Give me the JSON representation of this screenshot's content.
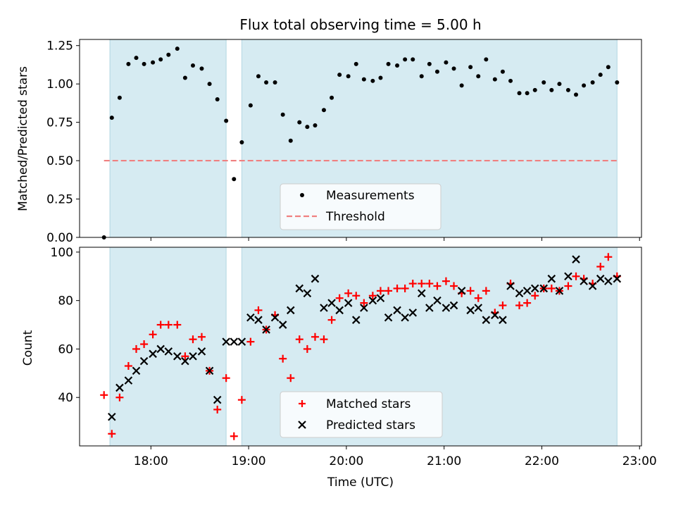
{
  "chart_data": {
    "title": "Flux total observing time = 5.00 h",
    "xlabel": "Time (UTC)",
    "x_ticks": [
      {
        "t": 18.0,
        "label": "18:00"
      },
      {
        "t": 19.0,
        "label": "19:00"
      },
      {
        "t": 20.0,
        "label": "20:00"
      },
      {
        "t": 21.0,
        "label": "21:00"
      },
      {
        "t": 22.0,
        "label": "22:00"
      },
      {
        "t": 23.0,
        "label": "23:00"
      }
    ],
    "xlim": [
      17.27,
      23.02
    ],
    "shaded_intervals": [
      [
        17.58,
        18.77
      ],
      [
        18.93,
        22.77
      ]
    ],
    "top": {
      "type": "scatter",
      "ylabel": "Matched/Predicted stars",
      "ylim": [
        0,
        1.29
      ],
      "yticks": [
        0.0,
        0.25,
        0.5,
        0.75,
        1.0,
        1.25
      ],
      "ytick_labels": [
        "0.00",
        "0.25",
        "0.50",
        "0.75",
        "1.00",
        "1.25"
      ],
      "threshold": {
        "value": 0.5,
        "x_range": [
          17.52,
          22.77
        ],
        "name": "Threshold",
        "color": "#f08080"
      },
      "series": {
        "name": "Measurements",
        "color": "#000000",
        "x": [
          17.52,
          17.6,
          17.68,
          17.77,
          17.85,
          17.93,
          18.02,
          18.1,
          18.18,
          18.27,
          18.35,
          18.43,
          18.52,
          18.6,
          18.68,
          18.77,
          18.85,
          18.93,
          19.02,
          19.1,
          19.18,
          19.27,
          19.35,
          19.43,
          19.52,
          19.6,
          19.68,
          19.77,
          19.85,
          19.93,
          20.02,
          20.1,
          20.18,
          20.27,
          20.35,
          20.43,
          20.52,
          20.6,
          20.68,
          20.77,
          20.85,
          20.93,
          21.02,
          21.1,
          21.18,
          21.27,
          21.35,
          21.43,
          21.52,
          21.6,
          21.68,
          21.77,
          21.85,
          21.93,
          22.02,
          22.1,
          22.18,
          22.27,
          22.35,
          22.43,
          22.52,
          22.6,
          22.68,
          22.77
        ],
        "y": [
          0.0,
          0.78,
          0.91,
          1.13,
          1.17,
          1.13,
          1.14,
          1.16,
          1.19,
          1.23,
          1.04,
          1.12,
          1.1,
          1.0,
          0.9,
          0.76,
          0.38,
          0.62,
          0.86,
          1.05,
          1.01,
          1.01,
          0.8,
          0.63,
          0.75,
          0.72,
          0.73,
          0.83,
          0.91,
          1.06,
          1.05,
          1.13,
          1.03,
          1.02,
          1.04,
          1.13,
          1.12,
          1.16,
          1.16,
          1.05,
          1.13,
          1.08,
          1.14,
          1.1,
          0.99,
          1.11,
          1.05,
          1.16,
          1.03,
          1.08,
          1.02,
          0.94,
          0.94,
          0.96,
          1.01,
          0.96,
          1.0,
          0.96,
          0.93,
          0.99,
          1.01,
          1.06,
          1.11,
          1.01
        ]
      },
      "legend": {
        "placement": "lower-center"
      }
    },
    "bottom": {
      "type": "scatter",
      "ylabel": "Count",
      "ylim": [
        20,
        102
      ],
      "yticks": [
        40,
        60,
        80,
        100
      ],
      "ytick_labels": [
        "40",
        "60",
        "80",
        "100"
      ],
      "series": [
        {
          "name": "Matched stars",
          "marker": "plus",
          "color": "#ff0000",
          "x": [
            17.52,
            17.6,
            17.68,
            17.77,
            17.85,
            17.93,
            18.02,
            18.1,
            18.18,
            18.27,
            18.35,
            18.43,
            18.52,
            18.6,
            18.68,
            18.77,
            18.85,
            18.93,
            19.02,
            19.1,
            19.18,
            19.27,
            19.35,
            19.43,
            19.52,
            19.6,
            19.68,
            19.77,
            19.85,
            19.93,
            20.02,
            20.1,
            20.18,
            20.27,
            20.35,
            20.43,
            20.52,
            20.6,
            20.68,
            20.77,
            20.85,
            20.93,
            21.02,
            21.1,
            21.18,
            21.27,
            21.35,
            21.43,
            21.52,
            21.6,
            21.68,
            21.77,
            21.85,
            21.93,
            22.02,
            22.1,
            22.18,
            22.27,
            22.35,
            22.43,
            22.52,
            22.6,
            22.68,
            22.77
          ],
          "y": [
            41,
            25,
            40,
            53,
            60,
            62,
            66,
            70,
            70,
            70,
            57,
            64,
            65,
            51,
            35,
            48,
            24,
            39,
            63,
            76,
            68,
            74,
            56,
            48,
            64,
            60,
            65,
            64,
            72,
            81,
            83,
            82,
            79,
            82,
            84,
            84,
            85,
            85,
            87,
            87,
            87,
            86,
            88,
            86,
            83,
            84,
            81,
            84,
            75,
            78,
            87,
            78,
            79,
            82,
            85,
            85,
            84,
            86,
            90,
            89,
            87,
            94,
            98,
            90
          ]
        },
        {
          "name": "Predicted stars",
          "marker": "x",
          "color": "#000000",
          "x": [
            17.6,
            17.68,
            17.77,
            17.85,
            17.93,
            18.02,
            18.1,
            18.18,
            18.27,
            18.35,
            18.43,
            18.52,
            18.6,
            18.68,
            18.77,
            18.85,
            18.93,
            19.02,
            19.1,
            19.18,
            19.27,
            19.35,
            19.43,
            19.52,
            19.6,
            19.68,
            19.77,
            19.85,
            19.93,
            20.02,
            20.1,
            20.18,
            20.27,
            20.35,
            20.43,
            20.52,
            20.6,
            20.68,
            20.77,
            20.85,
            20.93,
            21.02,
            21.1,
            21.18,
            21.27,
            21.35,
            21.43,
            21.52,
            21.6,
            21.68,
            21.77,
            21.85,
            21.93,
            22.02,
            22.1,
            22.18,
            22.27,
            22.35,
            22.43,
            22.52,
            22.6,
            22.68,
            22.77
          ],
          "y": [
            32,
            44,
            47,
            51,
            55,
            58,
            60,
            59,
            57,
            55,
            57,
            59,
            51,
            39,
            63,
            63,
            63,
            73,
            72,
            68,
            73,
            70,
            76,
            85,
            83,
            89,
            77,
            79,
            76,
            79,
            72,
            77,
            80,
            81,
            73,
            76,
            73,
            75,
            83,
            77,
            80,
            77,
            78,
            84,
            76,
            77,
            72,
            74,
            72,
            86,
            83,
            84,
            85,
            85,
            89,
            84,
            90,
            97,
            88,
            86,
            89,
            88,
            89
          ]
        }
      ],
      "legend": {
        "placement": "lower-center"
      }
    }
  }
}
